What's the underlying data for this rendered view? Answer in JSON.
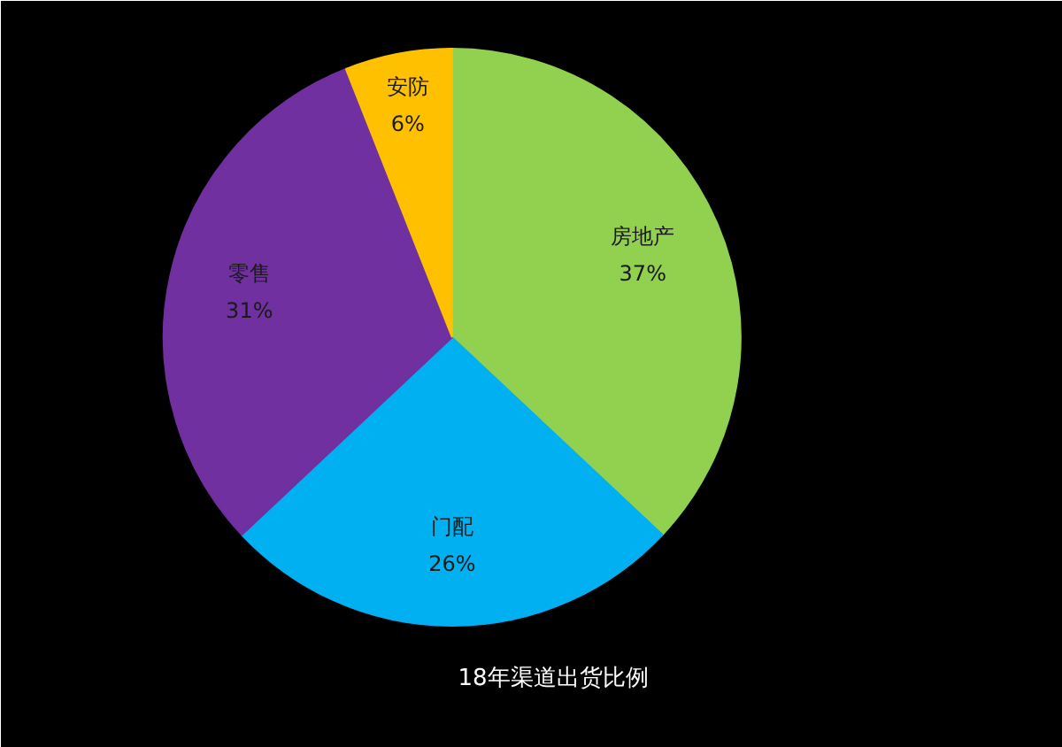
{
  "chart_data": {
    "type": "pie",
    "title": "18年渠道出货比例",
    "categories": [
      "房地产",
      "门配",
      "零售",
      "安防"
    ],
    "values": [
      37,
      26,
      31,
      6
    ],
    "colors": [
      "#92d050",
      "#00b0f0",
      "#7030a0",
      "#ffc000"
    ],
    "value_labels": [
      "37%",
      "26%",
      "31%",
      "6%"
    ],
    "legend": false
  }
}
